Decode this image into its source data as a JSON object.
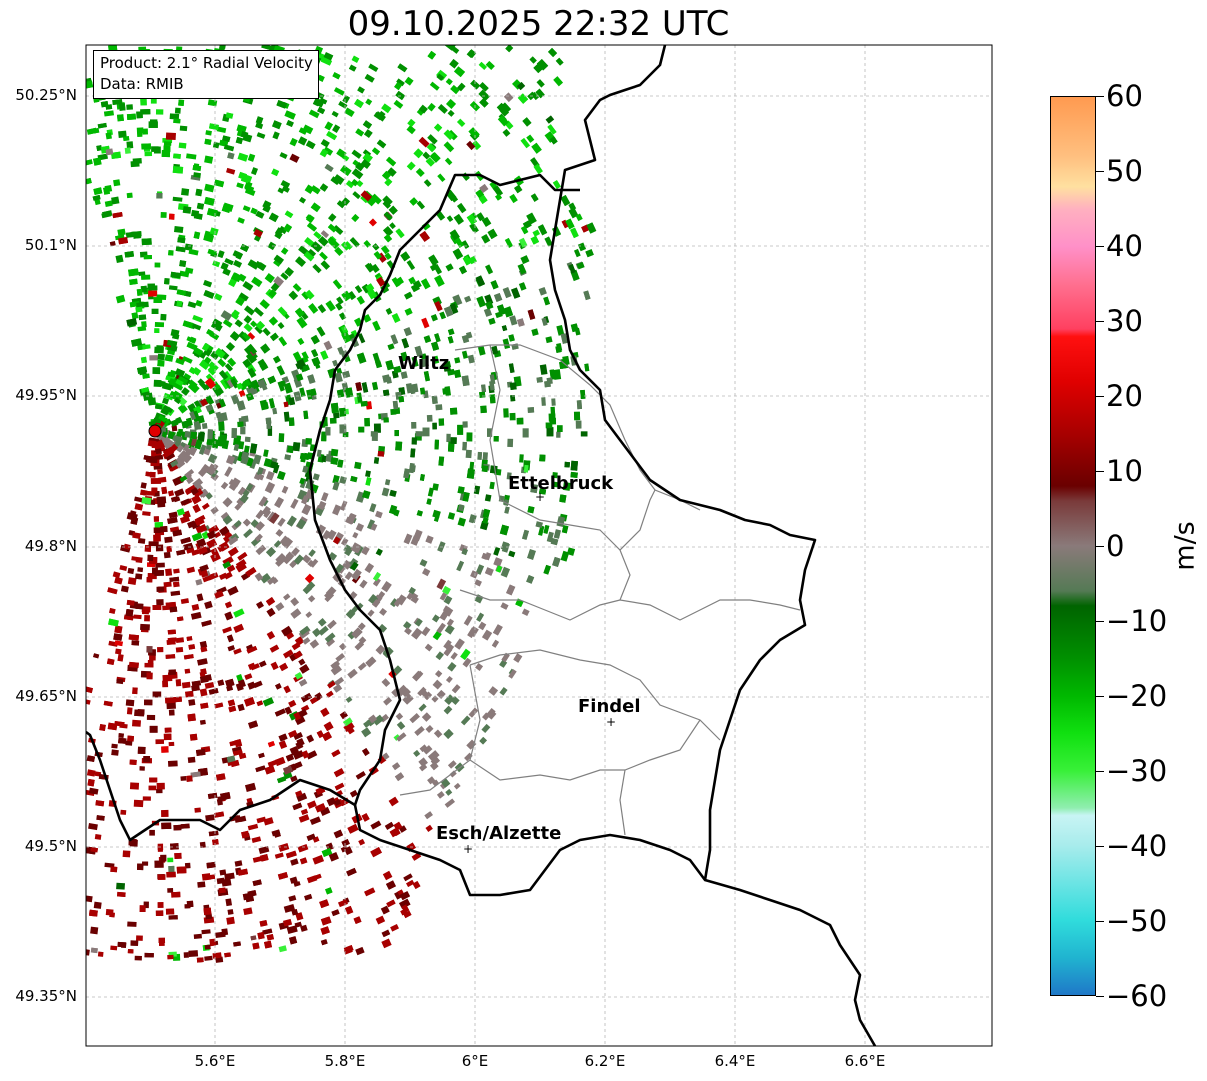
{
  "title": "09.10.2025 22:32 UTC",
  "info": {
    "product": "Product: 2.1° Radial Velocity",
    "data": "Data: RMIB"
  },
  "lat_ticks": [
    "50.25°N",
    "50.1°N",
    "49.95°N",
    "49.8°N",
    "49.65°N",
    "49.5°N",
    "49.35°N"
  ],
  "lon_ticks": [
    "5.6°E",
    "5.8°E",
    "6°E",
    "6.2°E",
    "6.4°E",
    "6.6°E"
  ],
  "cities": [
    {
      "name": "Wiltz",
      "marker": false
    },
    {
      "name": "Ettelbruck",
      "marker": true
    },
    {
      "name": "Findel",
      "marker": true
    },
    {
      "name": "Esch/Alzette",
      "marker": true
    }
  ],
  "colorbar": {
    "unit": "m/s",
    "min": -60,
    "max": 60,
    "tick_labels": [
      "60",
      "50",
      "40",
      "30",
      "20",
      "10",
      "0",
      "−10",
      "−20",
      "−30",
      "−40",
      "−50",
      "−60"
    ],
    "stops": [
      {
        "v": -60,
        "c": "#1f78c8"
      },
      {
        "v": -55,
        "c": "#20b4d0"
      },
      {
        "v": -50,
        "c": "#30dcdc"
      },
      {
        "v": -40,
        "c": "#a8ecec"
      },
      {
        "v": -36,
        "c": "#c8f4f4"
      },
      {
        "v": -35,
        "c": "#90eeb0"
      },
      {
        "v": -30,
        "c": "#38f038"
      },
      {
        "v": -25,
        "c": "#10e010"
      },
      {
        "v": -20,
        "c": "#00b800"
      },
      {
        "v": -15,
        "c": "#009000"
      },
      {
        "v": -8,
        "c": "#006400"
      },
      {
        "v": -6,
        "c": "#557a55"
      },
      {
        "v": 0,
        "c": "#8a7a7a"
      },
      {
        "v": 6,
        "c": "#7a3a3a"
      },
      {
        "v": 8,
        "c": "#6a0000"
      },
      {
        "v": 15,
        "c": "#a80000"
      },
      {
        "v": 22,
        "c": "#e00000"
      },
      {
        "v": 28,
        "c": "#ff1010"
      },
      {
        "v": 29,
        "c": "#ff4060"
      },
      {
        "v": 35,
        "c": "#ff7090"
      },
      {
        "v": 40,
        "c": "#ff90c8"
      },
      {
        "v": 45,
        "c": "#ffb0c0"
      },
      {
        "v": 48,
        "c": "#ffe0a0"
      },
      {
        "v": 52,
        "c": "#ffc080"
      },
      {
        "v": 60,
        "c": "#ff9a50"
      }
    ]
  },
  "radar": {
    "name": "radar-site",
    "lon": 5.505,
    "lat": 49.914
  }
}
